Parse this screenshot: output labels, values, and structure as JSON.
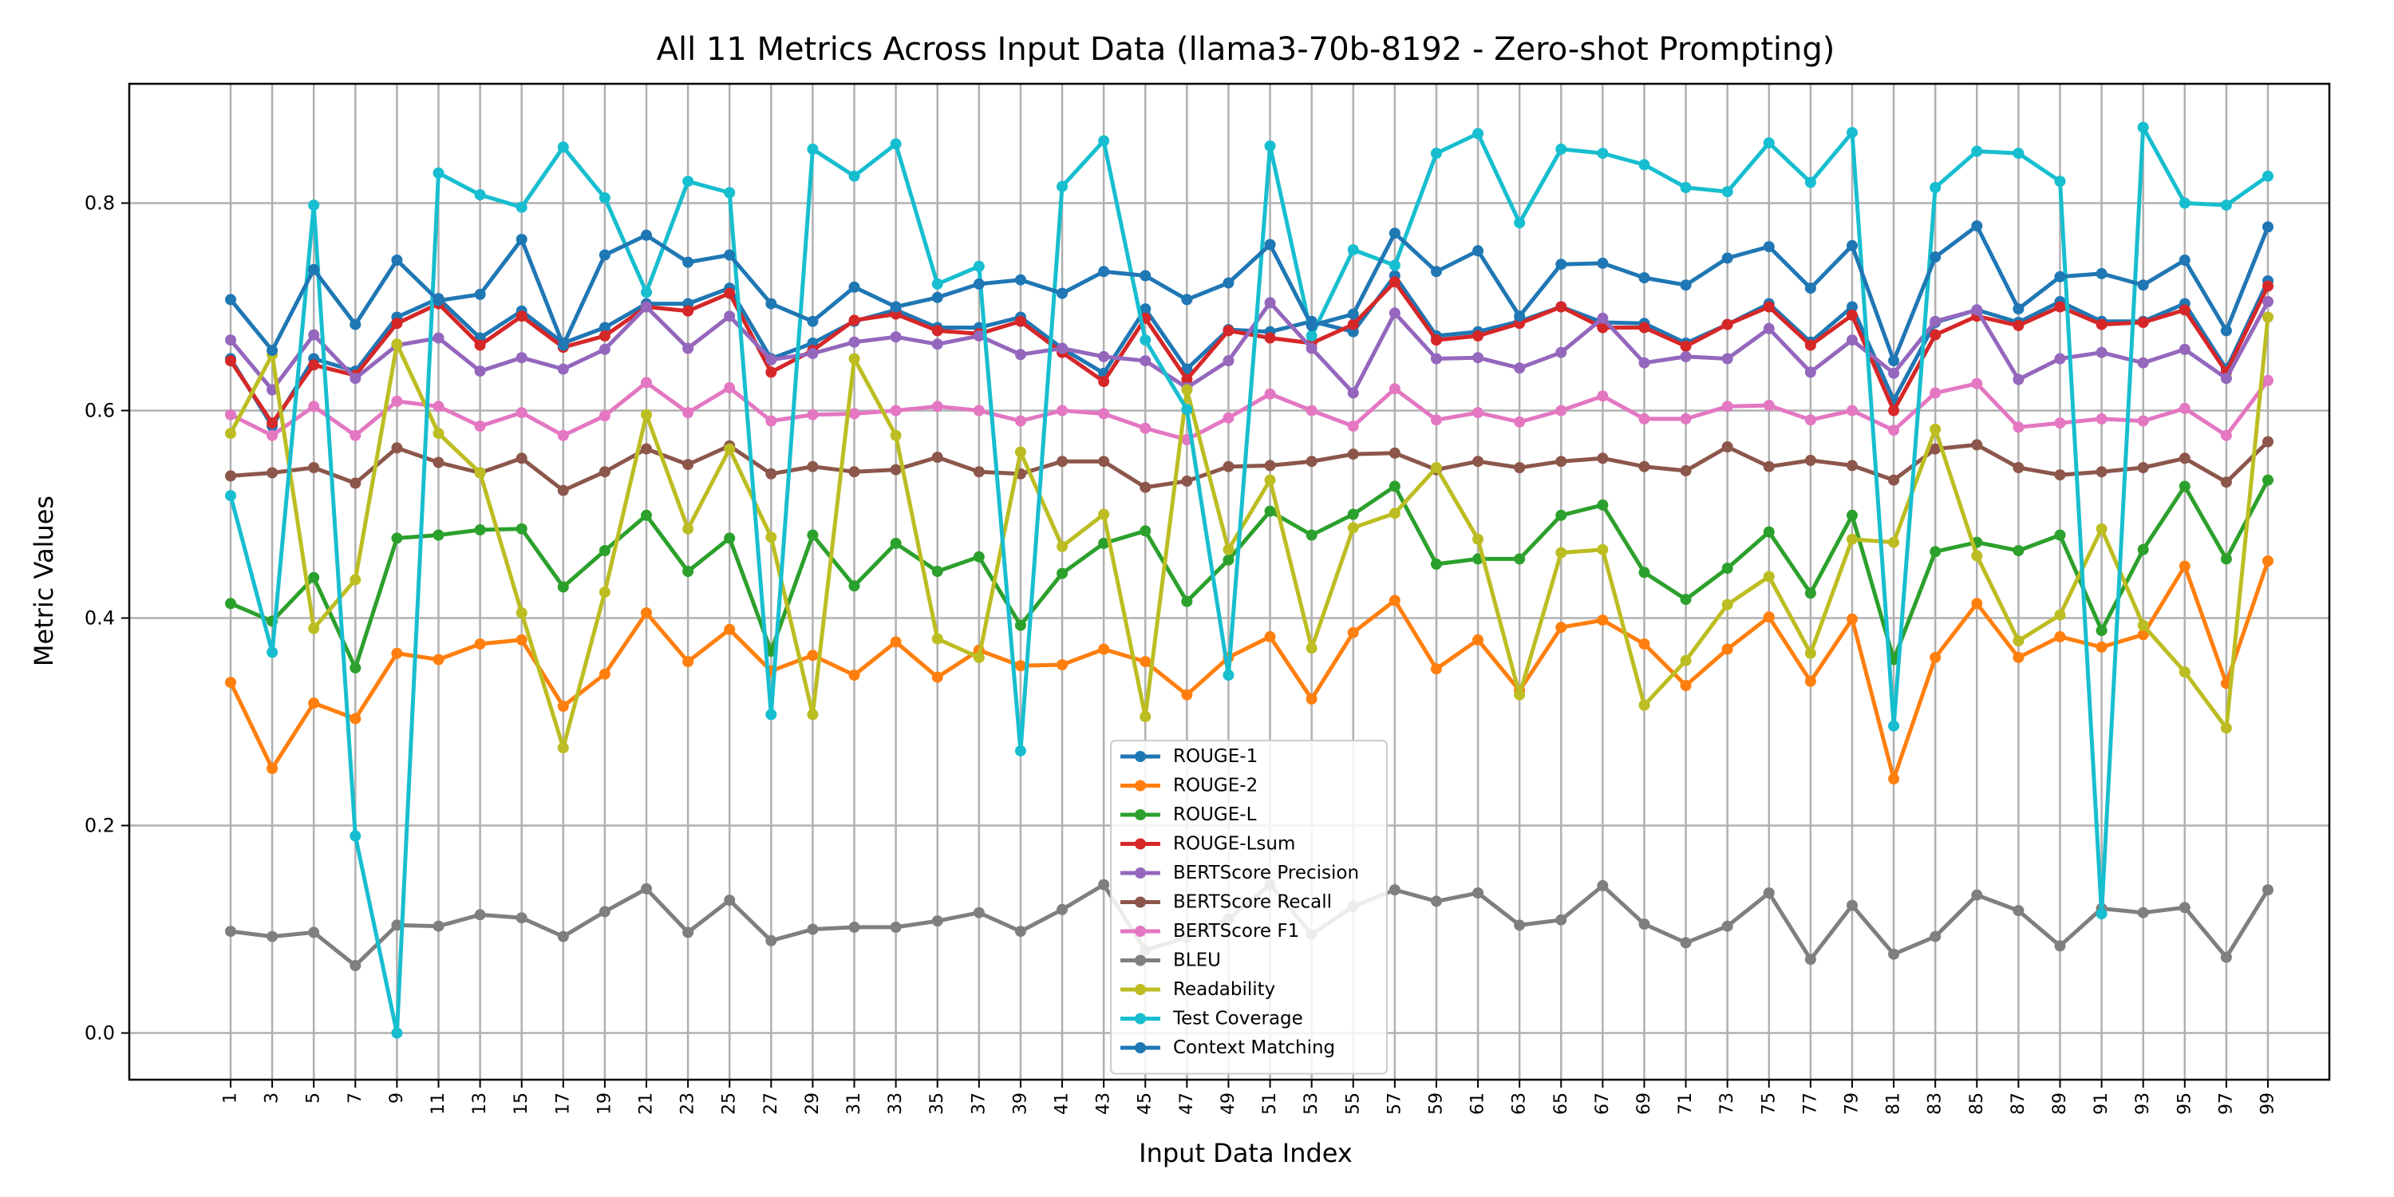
{
  "chart_data": {
    "type": "line",
    "title": "All 11 Metrics Across Input Data (llama3-70b-8192 - Zero-shot Prompting)",
    "xlabel": "Input Data Index",
    "ylabel": "Metric Values",
    "ylim": [
      -0.045,
      0.915
    ],
    "yticks": [
      "0.0",
      "0.2",
      "0.4",
      "0.6",
      "0.8"
    ],
    "grid": true,
    "legend_position": "lower-center",
    "categories": [
      "1",
      "3",
      "5",
      "7",
      "9",
      "11",
      "13",
      "15",
      "17",
      "19",
      "21",
      "23",
      "25",
      "27",
      "29",
      "31",
      "33",
      "35",
      "37",
      "39",
      "41",
      "43",
      "45",
      "47",
      "49",
      "51",
      "53",
      "55",
      "57",
      "59",
      "61",
      "63",
      "65",
      "67",
      "69",
      "71",
      "73",
      "75",
      "77",
      "79",
      "81",
      "83",
      "85",
      "87",
      "89",
      "91",
      "93",
      "95",
      "97",
      "99"
    ],
    "series": [
      {
        "name": "ROUGE-1",
        "color": "#1f77b4",
        "values": [
          0.65,
          0.585,
          0.65,
          0.638,
          0.69,
          0.708,
          0.67,
          0.696,
          0.665,
          0.68,
          0.703,
          0.703,
          0.718,
          0.65,
          0.665,
          0.686,
          0.697,
          0.68,
          0.68,
          0.69,
          0.66,
          0.636,
          0.698,
          0.64,
          0.678,
          0.676,
          0.686,
          0.676,
          0.73,
          0.672,
          0.676,
          0.686,
          0.7,
          0.685,
          0.684,
          0.665,
          0.683,
          0.703,
          0.666,
          0.7,
          0.61,
          0.685,
          0.697,
          0.685,
          0.705,
          0.686,
          0.686,
          0.703,
          0.64,
          0.725
        ]
      },
      {
        "name": "ROUGE-2",
        "color": "#ff7f0e",
        "values": [
          0.338,
          0.255,
          0.318,
          0.303,
          0.366,
          0.36,
          0.375,
          0.379,
          0.315,
          0.346,
          0.405,
          0.358,
          0.389,
          0.349,
          0.364,
          0.345,
          0.377,
          0.343,
          0.369,
          0.354,
          0.355,
          0.37,
          0.358,
          0.326,
          0.362,
          0.382,
          0.322,
          0.386,
          0.417,
          0.351,
          0.379,
          0.33,
          0.391,
          0.398,
          0.375,
          0.335,
          0.37,
          0.401,
          0.339,
          0.399,
          0.245,
          0.362,
          0.414,
          0.362,
          0.382,
          0.372,
          0.384,
          0.45,
          0.337,
          0.455
        ]
      },
      {
        "name": "ROUGE-L",
        "color": "#2ca02c",
        "values": [
          0.414,
          0.397,
          0.439,
          0.352,
          0.477,
          0.48,
          0.485,
          0.486,
          0.43,
          0.465,
          0.499,
          0.445,
          0.477,
          0.368,
          0.48,
          0.431,
          0.472,
          0.445,
          0.459,
          0.393,
          0.443,
          0.472,
          0.484,
          0.416,
          0.456,
          0.503,
          0.48,
          0.5,
          0.527,
          0.452,
          0.457,
          0.457,
          0.499,
          0.509,
          0.444,
          0.418,
          0.448,
          0.483,
          0.424,
          0.499,
          0.36,
          0.464,
          0.473,
          0.465,
          0.48,
          0.388,
          0.466,
          0.527,
          0.457,
          0.533
        ]
      },
      {
        "name": "ROUGE-Lsum",
        "color": "#d62728",
        "values": [
          0.648,
          0.588,
          0.644,
          0.634,
          0.684,
          0.703,
          0.663,
          0.691,
          0.661,
          0.672,
          0.7,
          0.696,
          0.713,
          0.637,
          0.658,
          0.687,
          0.693,
          0.677,
          0.674,
          0.686,
          0.656,
          0.628,
          0.689,
          0.63,
          0.677,
          0.67,
          0.665,
          0.683,
          0.724,
          0.668,
          0.672,
          0.684,
          0.7,
          0.68,
          0.68,
          0.662,
          0.683,
          0.7,
          0.663,
          0.692,
          0.6,
          0.673,
          0.691,
          0.682,
          0.7,
          0.683,
          0.685,
          0.697,
          0.637,
          0.72
        ]
      },
      {
        "name": "BERTScore Precision",
        "color": "#9467bd",
        "values": [
          0.668,
          0.62,
          0.673,
          0.631,
          0.663,
          0.67,
          0.638,
          0.651,
          0.64,
          0.659,
          0.7,
          0.66,
          0.691,
          0.649,
          0.655,
          0.666,
          0.671,
          0.664,
          0.672,
          0.654,
          0.66,
          0.652,
          0.648,
          0.622,
          0.648,
          0.704,
          0.66,
          0.617,
          0.694,
          0.65,
          0.651,
          0.641,
          0.656,
          0.689,
          0.646,
          0.652,
          0.65,
          0.679,
          0.637,
          0.668,
          0.636,
          0.686,
          0.697,
          0.63,
          0.65,
          0.656,
          0.646,
          0.659,
          0.631,
          0.705
        ]
      },
      {
        "name": "BERTScore Recall",
        "color": "#8c564b",
        "values": [
          0.537,
          0.54,
          0.545,
          0.53,
          0.564,
          0.55,
          0.54,
          0.554,
          0.523,
          0.541,
          0.563,
          0.548,
          0.566,
          0.539,
          0.546,
          0.541,
          0.543,
          0.555,
          0.541,
          0.539,
          0.551,
          0.551,
          0.526,
          0.532,
          0.546,
          0.547,
          0.551,
          0.558,
          0.559,
          0.543,
          0.551,
          0.545,
          0.551,
          0.554,
          0.546,
          0.542,
          0.565,
          0.546,
          0.552,
          0.547,
          0.533,
          0.563,
          0.567,
          0.545,
          0.538,
          0.541,
          0.545,
          0.554,
          0.531,
          0.57
        ]
      },
      {
        "name": "BERTScore F1",
        "color": "#e377c2",
        "values": [
          0.596,
          0.576,
          0.604,
          0.576,
          0.609,
          0.604,
          0.585,
          0.598,
          0.576,
          0.595,
          0.627,
          0.598,
          0.622,
          0.59,
          0.596,
          0.597,
          0.6,
          0.604,
          0.6,
          0.59,
          0.6,
          0.597,
          0.583,
          0.572,
          0.593,
          0.616,
          0.6,
          0.585,
          0.621,
          0.591,
          0.598,
          0.589,
          0.6,
          0.614,
          0.592,
          0.592,
          0.604,
          0.605,
          0.591,
          0.6,
          0.581,
          0.617,
          0.626,
          0.584,
          0.588,
          0.592,
          0.59,
          0.602,
          0.576,
          0.629
        ]
      },
      {
        "name": "BLEU",
        "color": "#7f7f7f",
        "values": [
          0.098,
          0.093,
          0.097,
          0.065,
          0.104,
          0.103,
          0.114,
          0.111,
          0.093,
          0.117,
          0.139,
          0.097,
          0.128,
          0.089,
          0.1,
          0.102,
          0.102,
          0.108,
          0.116,
          0.098,
          0.119,
          0.143,
          0.08,
          0.092,
          0.11,
          0.143,
          0.095,
          0.122,
          0.138,
          0.127,
          0.135,
          0.104,
          0.109,
          0.142,
          0.105,
          0.087,
          0.103,
          0.135,
          0.071,
          0.123,
          0.076,
          0.093,
          0.133,
          0.118,
          0.084,
          0.12,
          0.116,
          0.121,
          0.073,
          0.138
        ]
      },
      {
        "name": "Readability",
        "color": "#bcbd22",
        "values": [
          0.578,
          0.654,
          0.39,
          0.437,
          0.664,
          0.578,
          0.54,
          0.405,
          0.275,
          0.425,
          0.596,
          0.486,
          0.563,
          0.478,
          0.307,
          0.65,
          0.576,
          0.38,
          0.362,
          0.56,
          0.469,
          0.5,
          0.305,
          0.62,
          0.466,
          0.533,
          0.371,
          0.487,
          0.501,
          0.545,
          0.476,
          0.326,
          0.463,
          0.466,
          0.316,
          0.359,
          0.413,
          0.44,
          0.366,
          0.476,
          0.473,
          0.582,
          0.46,
          0.378,
          0.403,
          0.486,
          0.393,
          0.348,
          0.294,
          0.69
        ]
      },
      {
        "name": "Test Coverage",
        "color": "#17becf",
        "values": [
          0.518,
          0.367,
          0.798,
          0.19,
          0.0,
          0.829,
          0.808,
          0.796,
          0.854,
          0.805,
          0.714,
          0.821,
          0.81,
          0.307,
          0.852,
          0.826,
          0.857,
          0.722,
          0.739,
          0.272,
          0.816,
          0.86,
          0.668,
          0.601,
          0.345,
          0.855,
          0.672,
          0.755,
          0.74,
          0.848,
          0.867,
          0.781,
          0.852,
          0.848,
          0.837,
          0.815,
          0.811,
          0.858,
          0.82,
          0.868,
          0.296,
          0.815,
          0.85,
          0.848,
          0.821,
          0.115,
          0.873,
          0.8,
          0.798,
          0.826
        ]
      },
      {
        "name": "Context Matching",
        "color": "#1f77b4",
        "values": [
          0.707,
          0.658,
          0.736,
          0.683,
          0.745,
          0.706,
          0.712,
          0.765,
          0.663,
          0.75,
          0.769,
          0.743,
          0.75,
          0.703,
          0.686,
          0.719,
          0.7,
          0.709,
          0.722,
          0.726,
          0.713,
          0.734,
          0.73,
          0.707,
          0.723,
          0.76,
          0.682,
          0.693,
          0.771,
          0.734,
          0.754,
          0.691,
          0.741,
          0.742,
          0.728,
          0.721,
          0.747,
          0.758,
          0.718,
          0.759,
          0.648,
          0.748,
          0.778,
          0.698,
          0.729,
          0.732,
          0.721,
          0.745,
          0.677,
          0.777
        ]
      }
    ]
  }
}
